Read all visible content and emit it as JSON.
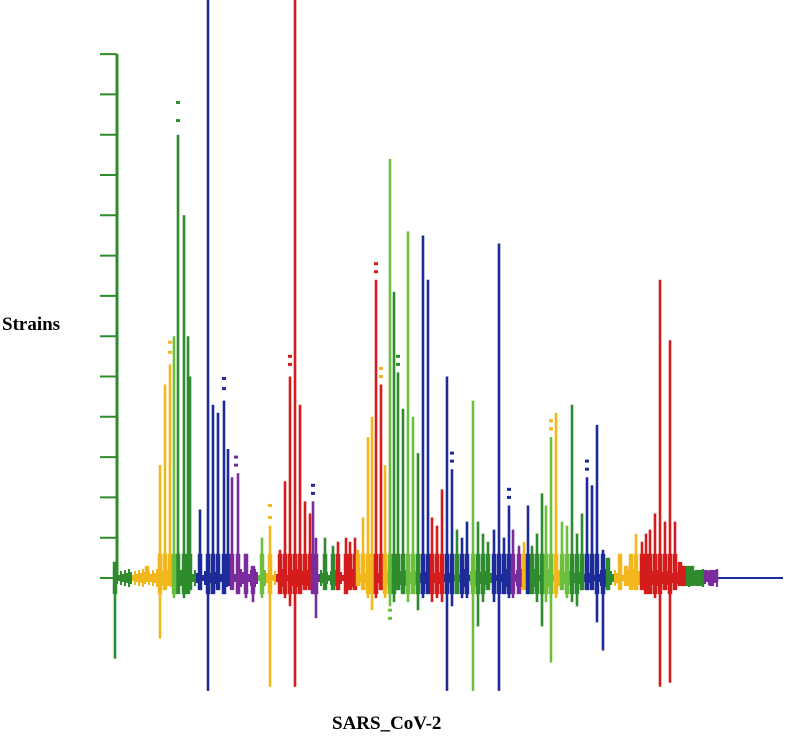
{
  "chart_data": {
    "type": "bar",
    "title": "",
    "xlabel": "SARS_CoV-2",
    "ylabel": "Strains",
    "ylim": [
      -3,
      13
    ],
    "y_ticks": 13,
    "grid": false,
    "colors": {
      "green": "#2e8b2e",
      "lightgreen": "#6cbf3c",
      "yellow": "#f2b71c",
      "blue": "#1c2a9a",
      "purple": "#7a2b9c",
      "red": "#d41c1c",
      "axis": "#2e8b2e",
      "baseline": "#1c2a9a"
    },
    "series": [
      {
        "name": "green",
        "x": [
          115,
          178,
          184,
          188,
          190
        ],
        "up": [
          0.4,
          11.0,
          9.0,
          6.0,
          5.0
        ],
        "down": [
          2.0,
          0.4,
          0.5,
          0.4,
          0.3
        ]
      },
      {
        "name": "yellow",
        "x": [
          147,
          160,
          165,
          170
        ],
        "up": [
          0.3,
          2.8,
          4.8,
          5.3
        ],
        "down": [
          0.1,
          1.5,
          0.3,
          0.2
        ]
      },
      {
        "name": "lightgreen",
        "x": [
          174,
          262
        ],
        "up": [
          6.0,
          1.0
        ],
        "down": [
          0.5,
          0.5
        ]
      },
      {
        "name": "blue",
        "x": [
          200,
          208,
          213,
          218,
          224,
          228
        ],
        "up": [
          1.7,
          14.5,
          4.3,
          4.1,
          4.4,
          3.2
        ],
        "down": [
          0.3,
          2.8,
          0.4,
          0.3,
          0.4,
          0.2
        ]
      },
      {
        "name": "purple",
        "x": [
          232,
          238,
          246,
          253
        ],
        "up": [
          2.5,
          2.6,
          0.6,
          0.3
        ],
        "down": [
          0.3,
          0.4,
          0.5,
          0.6
        ]
      },
      {
        "name": "yellow",
        "x": [
          270
        ],
        "up": [
          1.3
        ],
        "down": [
          2.7
        ]
      },
      {
        "name": "red",
        "x": [
          280,
          285,
          290,
          295,
          300,
          305,
          310
        ],
        "up": [
          0.7,
          2.4,
          5.0,
          14.5,
          4.3,
          1.9,
          1.6
        ],
        "down": [
          0.4,
          0.5,
          0.7,
          2.7,
          0.4,
          0.3,
          0.3
        ]
      },
      {
        "name": "purple",
        "x": [
          313,
          316
        ],
        "up": [
          1.9,
          1.0
        ],
        "down": [
          0.4,
          1.0
        ]
      },
      {
        "name": "green",
        "x": [
          325,
          333
        ],
        "up": [
          1.0,
          0.8
        ],
        "down": [
          0.3,
          0.3
        ]
      },
      {
        "name": "red",
        "x": [
          338,
          346,
          350,
          355
        ],
        "up": [
          0.9,
          1.0,
          0.9,
          1.0
        ],
        "down": [
          0.3,
          0.4,
          0.3,
          0.3
        ]
      },
      {
        "name": "yellow",
        "x": [
          358,
          363,
          368,
          372
        ],
        "up": [
          0.7,
          1.5,
          3.5,
          4.0
        ],
        "down": [
          0.2,
          0.3,
          0.5,
          0.8
        ]
      },
      {
        "name": "red",
        "x": [
          376,
          381
        ],
        "up": [
          7.4,
          4.8
        ],
        "down": [
          0.5,
          0.3
        ]
      },
      {
        "name": "yellow",
        "x": [
          385
        ],
        "up": [
          2.8
        ],
        "down": [
          0.5
        ]
      },
      {
        "name": "lightgreen",
        "x": [
          390
        ],
        "up": [
          10.4
        ],
        "down": [
          0.7
        ]
      },
      {
        "name": "green",
        "x": [
          394,
          398,
          403
        ],
        "up": [
          7.1,
          5.1,
          4.2
        ],
        "down": [
          0.6,
          0.3,
          0.4
        ]
      },
      {
        "name": "lightgreen",
        "x": [
          408,
          413
        ],
        "up": [
          8.6,
          4.0
        ],
        "down": [
          0.6,
          0.4
        ]
      },
      {
        "name": "green",
        "x": [
          418
        ],
        "up": [
          3.1
        ],
        "down": [
          0.8
        ]
      },
      {
        "name": "blue",
        "x": [
          423,
          428
        ],
        "up": [
          8.5,
          7.4
        ],
        "down": [
          0.5,
          0.4
        ]
      },
      {
        "name": "red",
        "x": [
          432,
          437,
          442
        ],
        "up": [
          1.5,
          1.3,
          2.2
        ],
        "down": [
          0.6,
          0.5,
          0.6
        ]
      },
      {
        "name": "blue",
        "x": [
          447,
          452
        ],
        "up": [
          5.0,
          2.7
        ],
        "down": [
          2.8,
          0.7
        ]
      },
      {
        "name": "green",
        "x": [
          457
        ],
        "up": [
          1.2
        ],
        "down": [
          0.4
        ]
      },
      {
        "name": "blue",
        "x": [
          462,
          467
        ],
        "up": [
          1.0,
          1.4
        ],
        "down": [
          0.5,
          0.5
        ]
      },
      {
        "name": "lightgreen",
        "x": [
          473
        ],
        "up": [
          4.4
        ],
        "down": [
          2.8
        ]
      },
      {
        "name": "green",
        "x": [
          478,
          483,
          488
        ],
        "up": [
          1.4,
          1.1,
          0.9
        ],
        "down": [
          1.2,
          0.6,
          0.3
        ]
      },
      {
        "name": "blue",
        "x": [
          494,
          499,
          504,
          509
        ],
        "up": [
          1.2,
          8.3,
          1.0,
          1.8
        ],
        "down": [
          0.6,
          2.8,
          0.4,
          0.5
        ]
      },
      {
        "name": "purple",
        "x": [
          513,
          519
        ],
        "up": [
          1.2,
          0.8
        ],
        "down": [
          0.5,
          0.4
        ]
      },
      {
        "name": "yellow",
        "x": [
          524
        ],
        "up": [
          0.9
        ],
        "down": [
          0.3
        ]
      },
      {
        "name": "blue",
        "x": [
          528
        ],
        "up": [
          1.8
        ],
        "down": [
          0.4
        ]
      },
      {
        "name": "green",
        "x": [
          532,
          537,
          542
        ],
        "up": [
          0.8,
          1.1,
          2.1
        ],
        "down": [
          0.4,
          0.6,
          1.2
        ]
      },
      {
        "name": "lightgreen",
        "x": [
          546,
          551
        ],
        "up": [
          1.8,
          3.5
        ],
        "down": [
          0.6,
          2.1
        ]
      },
      {
        "name": "yellow",
        "x": [
          556
        ],
        "up": [
          4.1
        ],
        "down": [
          0.5
        ]
      },
      {
        "name": "lightgreen",
        "x": [
          562,
          567
        ],
        "up": [
          1.4,
          1.3
        ],
        "down": [
          0.3,
          0.5
        ]
      },
      {
        "name": "green",
        "x": [
          572,
          577,
          582
        ],
        "up": [
          4.3,
          1.1,
          1.6
        ],
        "down": [
          0.6,
          0.7,
          0.3
        ]
      },
      {
        "name": "blue",
        "x": [
          587,
          592,
          597,
          603
        ],
        "up": [
          2.5,
          2.3,
          3.8,
          0.7
        ],
        "down": [
          0.3,
          0.3,
          1.1,
          1.8
        ]
      },
      {
        "name": "green",
        "x": [
          608
        ],
        "up": [
          0.5
        ],
        "down": [
          0.3
        ]
      },
      {
        "name": "yellow",
        "x": [
          620,
          626,
          631,
          636
        ],
        "up": [
          0.6,
          0.3,
          0.6,
          1.1
        ],
        "down": [
          0.3,
          0.2,
          0.3,
          0.3
        ]
      },
      {
        "name": "red",
        "x": [
          642,
          646,
          650,
          655,
          660,
          665,
          670,
          675
        ],
        "up": [
          0.9,
          1.1,
          1.2,
          1.6,
          7.4,
          1.4,
          5.9,
          1.4
        ],
        "down": [
          0.3,
          0.4,
          0.4,
          0.5,
          2.7,
          0.3,
          2.6,
          0.3
        ]
      },
      {
        "name": "red",
        "x": [
          680,
          684
        ],
        "up": [
          0.4,
          0.3
        ],
        "down": [
          0.2,
          0.2
        ]
      },
      {
        "name": "green",
        "x": [
          688,
          692,
          697,
          702
        ],
        "up": [
          0.3,
          0.3,
          0.2,
          0.2
        ],
        "down": [
          0.2,
          0.2,
          0.2,
          0.2
        ]
      },
      {
        "name": "purple",
        "x": [
          706,
          711,
          716
        ],
        "up": [
          0.2,
          0.2,
          0.2
        ],
        "down": [
          0.1,
          0.2,
          0.1
        ]
      }
    ],
    "dots": [
      {
        "name": "green",
        "x": 178,
        "y": [
          11.35,
          11.8
        ]
      },
      {
        "name": "yellow",
        "x": 170,
        "y": [
          5.6,
          5.85
        ]
      },
      {
        "name": "blue",
        "x": 224,
        "y": [
          4.7,
          4.95
        ]
      },
      {
        "name": "purple",
        "x": 236,
        "y": [
          2.8,
          3.0
        ]
      },
      {
        "name": "red",
        "x": 290,
        "y": [
          5.3,
          5.5
        ]
      },
      {
        "name": "yellow",
        "x": 270,
        "y": [
          1.5,
          1.8
        ]
      },
      {
        "name": "blue",
        "x": 313,
        "y": [
          2.1,
          2.3
        ]
      },
      {
        "name": "red",
        "x": 376,
        "y": [
          7.6,
          7.8
        ]
      },
      {
        "name": "lightgreen",
        "x": 390,
        "y": [
          -0.8,
          -1.0
        ]
      },
      {
        "name": "green",
        "x": 398,
        "y": [
          5.3,
          5.5
        ]
      },
      {
        "name": "yellow",
        "x": 381,
        "y": [
          5.0,
          5.2
        ]
      },
      {
        "name": "blue",
        "x": 452,
        "y": [
          2.9,
          3.1
        ]
      },
      {
        "name": "yellow",
        "x": 551,
        "y": [
          3.7,
          3.9
        ]
      },
      {
        "name": "blue",
        "x": 587,
        "y": [
          2.7,
          2.9
        ]
      },
      {
        "name": "blue",
        "x": 509,
        "y": [
          2.0,
          2.2
        ]
      }
    ]
  }
}
